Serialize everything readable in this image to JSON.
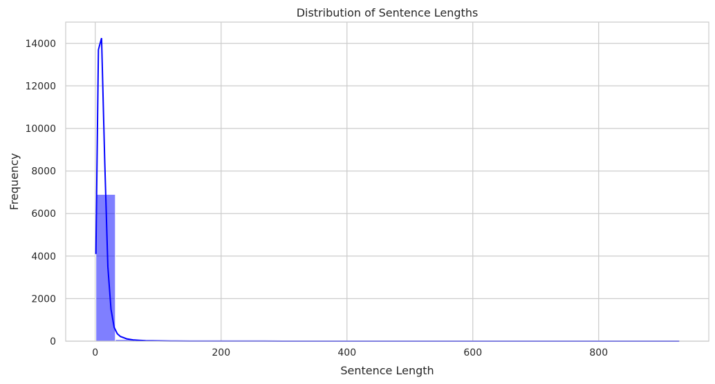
{
  "chart_data": {
    "type": "bar",
    "title": "Distribution of Sentence Lengths",
    "xlabel": "Sentence Length",
    "ylabel": "Frequency",
    "xlim": [
      -47,
      975
    ],
    "ylim": [
      0,
      15000
    ],
    "grid": true,
    "x_ticks": [
      0,
      200,
      400,
      600,
      800
    ],
    "x_tick_labels": [
      "0",
      "200",
      "400",
      "600",
      "800"
    ],
    "y_ticks": [
      0,
      2000,
      4000,
      6000,
      8000,
      10000,
      12000,
      14000
    ],
    "y_tick_labels": [
      "0",
      "2000",
      "4000",
      "6000",
      "8000",
      "10000",
      "12000",
      "14000"
    ],
    "histogram": {
      "name": "count",
      "bin_edges": [
        1,
        31.9,
        62.8,
        93.7,
        124.6,
        155.5,
        186.4,
        217.3,
        248.2,
        279.1,
        310,
        340.9,
        371.8,
        402.7,
        433.6,
        464.5,
        495.4,
        526.3,
        557.2,
        588.1,
        619,
        649.9,
        680.8,
        711.7,
        742.6,
        773.5,
        804.4,
        835.3,
        866.2,
        897.1,
        928
      ],
      "counts": [
        6900,
        80,
        25,
        12,
        8,
        5,
        4,
        3,
        2,
        2,
        2,
        1,
        1,
        1,
        1,
        1,
        1,
        1,
        1,
        1,
        1,
        1,
        1,
        1,
        1,
        1,
        1,
        1,
        1,
        1
      ],
      "color": "#0000ff",
      "alpha": 0.5
    },
    "kde": {
      "name": "kde",
      "color": "#0000ff",
      "x": [
        1,
        5,
        10,
        15,
        20,
        25,
        30,
        35,
        40,
        50,
        60,
        70,
        80,
        100,
        120,
        150,
        200,
        300,
        400,
        500,
        600,
        700,
        800,
        928
      ],
      "y": [
        4100,
        13700,
        14250,
        8500,
        3500,
        1500,
        650,
        350,
        220,
        110,
        60,
        40,
        25,
        15,
        10,
        6,
        4,
        2,
        1,
        1,
        1,
        1,
        1,
        1
      ]
    }
  }
}
